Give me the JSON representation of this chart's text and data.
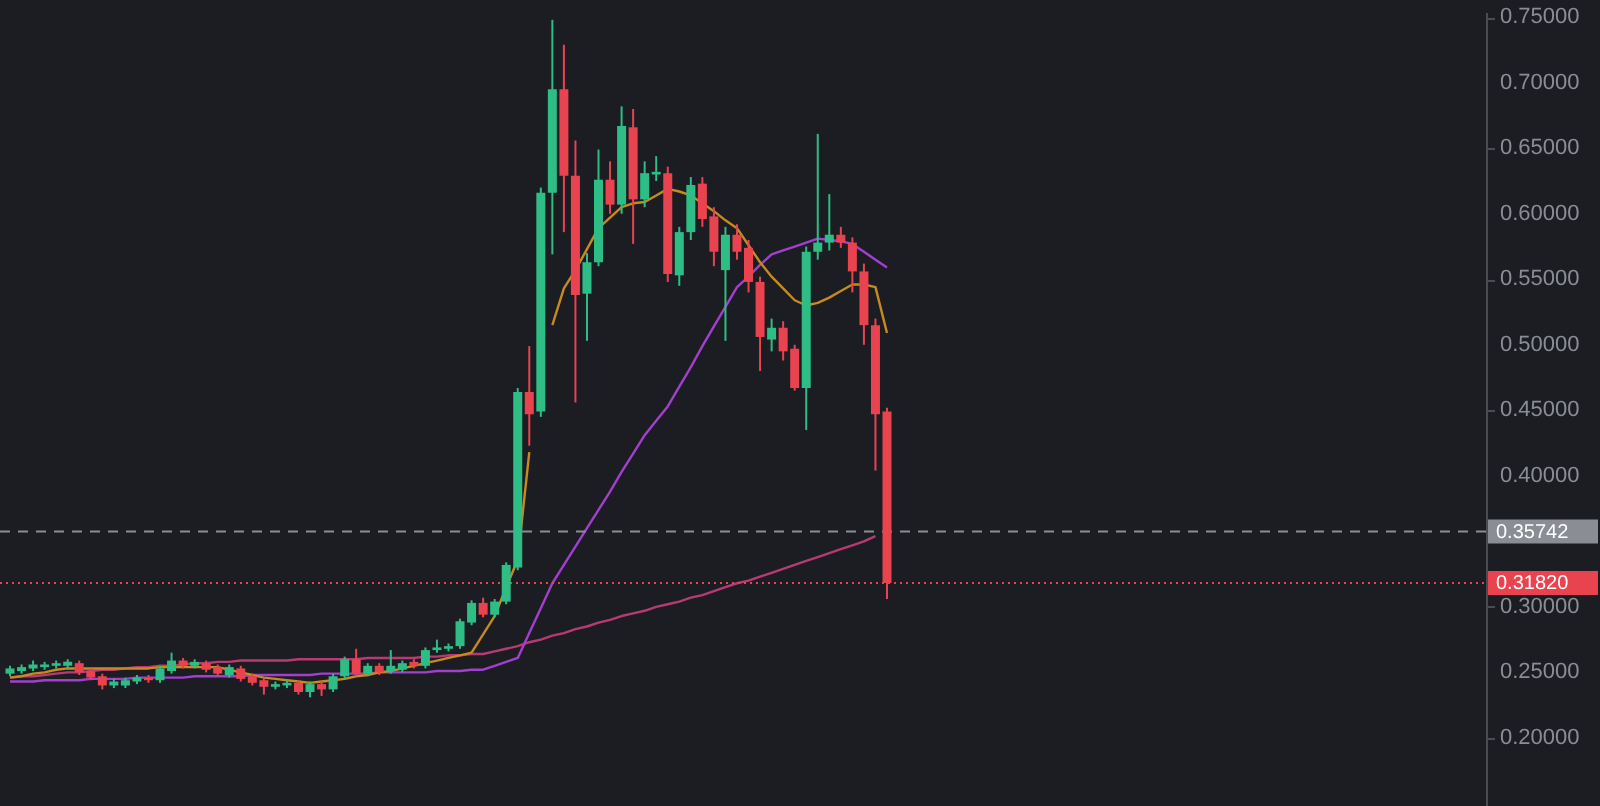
{
  "chart_data": {
    "type": "candlestick",
    "categories": [
      null,
      null,
      null,
      null,
      null,
      null,
      null,
      null,
      null,
      null,
      null,
      null,
      null,
      null,
      null,
      null,
      null,
      null,
      null,
      null,
      null,
      null,
      null,
      null,
      null,
      null,
      null,
      null,
      null,
      null,
      null,
      null,
      null,
      null,
      null,
      null,
      null,
      null,
      null,
      null,
      null,
      null,
      null,
      null,
      null,
      null,
      null,
      null,
      null,
      null,
      null,
      null,
      null,
      null,
      null,
      null,
      null,
      null,
      null,
      null,
      null,
      null,
      null,
      null,
      null,
      null,
      null,
      null,
      null,
      null,
      null,
      null,
      null,
      null,
      null,
      null,
      null
    ],
    "ohlc": [
      [
        0.249,
        0.255,
        0.247,
        0.253
      ],
      [
        0.251,
        0.256,
        0.249,
        0.254
      ],
      [
        0.253,
        0.259,
        0.251,
        0.256
      ],
      [
        0.254,
        0.258,
        0.252,
        0.256
      ],
      [
        0.255,
        0.259,
        0.253,
        0.257
      ],
      [
        0.255,
        0.26,
        0.253,
        0.258
      ],
      [
        0.257,
        0.259,
        0.248,
        0.25
      ],
      [
        0.251,
        0.253,
        0.244,
        0.246
      ],
      [
        0.247,
        0.249,
        0.237,
        0.24
      ],
      [
        0.24,
        0.245,
        0.238,
        0.243
      ],
      [
        0.24,
        0.246,
        0.238,
        0.244
      ],
      [
        0.243,
        0.248,
        0.241,
        0.246
      ],
      [
        0.246,
        0.248,
        0.242,
        0.244
      ],
      [
        0.244,
        0.255,
        0.242,
        0.253
      ],
      [
        0.251,
        0.265,
        0.249,
        0.259
      ],
      [
        0.259,
        0.261,
        0.253,
        0.255
      ],
      [
        0.255,
        0.26,
        0.253,
        0.258
      ],
      [
        0.257,
        0.259,
        0.25,
        0.252
      ],
      [
        0.254,
        0.256,
        0.247,
        0.249
      ],
      [
        0.248,
        0.256,
        0.246,
        0.254
      ],
      [
        0.253,
        0.255,
        0.243,
        0.245
      ],
      [
        0.247,
        0.249,
        0.24,
        0.242
      ],
      [
        0.244,
        0.246,
        0.233,
        0.239
      ],
      [
        0.239,
        0.243,
        0.237,
        0.241
      ],
      [
        0.24,
        0.244,
        0.238,
        0.242
      ],
      [
        0.242,
        0.244,
        0.233,
        0.235
      ],
      [
        0.235,
        0.243,
        0.231,
        0.241
      ],
      [
        0.241,
        0.243,
        0.232,
        0.237
      ],
      [
        0.237,
        0.249,
        0.235,
        0.247
      ],
      [
        0.247,
        0.262,
        0.245,
        0.26
      ],
      [
        0.26,
        0.268,
        0.247,
        0.249
      ],
      [
        0.249,
        0.257,
        0.247,
        0.255
      ],
      [
        0.255,
        0.257,
        0.248,
        0.25
      ],
      [
        0.251,
        0.267,
        0.249,
        0.255
      ],
      [
        0.252,
        0.259,
        0.25,
        0.257
      ],
      [
        0.258,
        0.26,
        0.253,
        0.255
      ],
      [
        0.255,
        0.269,
        0.253,
        0.267
      ],
      [
        0.267,
        0.275,
        0.265,
        0.269
      ],
      [
        0.268,
        0.272,
        0.266,
        0.27
      ],
      [
        0.27,
        0.291,
        0.268,
        0.289
      ],
      [
        0.288,
        0.305,
        0.286,
        0.303
      ],
      [
        0.303,
        0.307,
        0.292,
        0.294
      ],
      [
        0.294,
        0.306,
        0.292,
        0.304
      ],
      [
        0.304,
        0.334,
        0.302,
        0.332
      ],
      [
        0.33,
        0.467,
        0.328,
        0.464
      ],
      [
        0.464,
        0.499,
        0.423,
        0.447
      ],
      [
        0.449,
        0.62,
        0.445,
        0.616
      ],
      [
        0.616,
        0.748,
        0.569,
        0.695
      ],
      [
        0.695,
        0.729,
        0.586,
        0.629
      ],
      [
        0.629,
        0.656,
        0.456,
        0.538
      ],
      [
        0.539,
        0.57,
        0.503,
        0.563
      ],
      [
        0.563,
        0.649,
        0.56,
        0.626
      ],
      [
        0.626,
        0.64,
        0.6,
        0.607
      ],
      [
        0.607,
        0.682,
        0.6,
        0.667
      ],
      [
        0.666,
        0.68,
        0.577,
        0.611
      ],
      [
        0.611,
        0.64,
        0.605,
        0.631
      ],
      [
        0.63,
        0.644,
        0.625,
        0.632
      ],
      [
        0.631,
        0.636,
        0.548,
        0.554
      ],
      [
        0.553,
        0.59,
        0.545,
        0.586
      ],
      [
        0.586,
        0.628,
        0.58,
        0.622
      ],
      [
        0.623,
        0.628,
        0.59,
        0.596
      ],
      [
        0.598,
        0.605,
        0.56,
        0.571
      ],
      [
        0.557,
        0.59,
        0.503,
        0.584
      ],
      [
        0.584,
        0.592,
        0.565,
        0.571
      ],
      [
        0.574,
        0.58,
        0.54,
        0.548
      ],
      [
        0.548,
        0.552,
        0.48,
        0.506
      ],
      [
        0.504,
        0.52,
        0.495,
        0.513
      ],
      [
        0.513,
        0.518,
        0.488,
        0.495
      ],
      [
        0.497,
        0.5,
        0.465,
        0.467
      ],
      [
        0.467,
        0.575,
        0.435,
        0.571
      ],
      [
        0.571,
        0.661,
        0.565,
        0.578
      ],
      [
        0.578,
        0.615,
        0.572,
        0.584
      ],
      [
        0.584,
        0.59,
        0.574,
        0.578
      ],
      [
        0.578,
        0.582,
        0.54,
        0.556
      ],
      [
        0.556,
        0.562,
        0.5,
        0.515
      ],
      [
        0.515,
        0.52,
        0.404,
        0.447
      ],
      [
        0.449,
        0.452,
        0.306,
        0.3182
      ]
    ],
    "colors": [
      "#2ebd85",
      "#2ebd85",
      "#2ebd85",
      "#2ebd85",
      "#2ebd85",
      "#2ebd85",
      "#e8434f",
      "#e8434f",
      "#e8434f",
      "#2ebd85",
      "#2ebd85",
      "#2ebd85",
      "#e8434f",
      "#2ebd85",
      "#2ebd85",
      "#e8434f",
      "#2ebd85",
      "#e8434f",
      "#e8434f",
      "#2ebd85",
      "#e8434f",
      "#e8434f",
      "#e8434f",
      "#2ebd85",
      "#2ebd85",
      "#e8434f",
      "#2ebd85",
      "#e8434f",
      "#2ebd85",
      "#2ebd85",
      "#e8434f",
      "#2ebd85",
      "#e8434f",
      "#2ebd85",
      "#2ebd85",
      "#e8434f",
      "#2ebd85",
      "#2ebd85",
      "#2ebd85",
      "#2ebd85",
      "#2ebd85",
      "#e8434f",
      "#2ebd85",
      "#2ebd85",
      "#2ebd85",
      "#e8434f",
      "#2ebd85",
      "#2ebd85",
      "#e8434f",
      "#e8434f",
      "#2ebd85",
      "#2ebd85",
      "#e8434f",
      "#2ebd85",
      "#e8434f",
      "#2ebd85",
      "#2ebd85",
      "#e8434f",
      "#2ebd85",
      "#2ebd85",
      "#e8434f",
      "#e8434f",
      "#2ebd85",
      "#e8434f",
      "#e8434f",
      "#e8434f",
      "#2ebd85",
      "#e8434f",
      "#e8434f",
      "#2ebd85",
      "#2ebd85",
      "#2ebd85",
      "#e8434f",
      "#e8434f",
      "#e8434f",
      "#e8434f",
      "#e8434f"
    ],
    "series": [
      {
        "type": "line",
        "color": "#b73a74",
        "values": [
          0.246,
          0.247,
          0.247,
          0.248,
          0.249,
          0.25,
          0.25,
          0.251,
          0.252,
          0.252,
          0.253,
          0.254,
          0.254,
          0.255,
          0.255,
          0.256,
          0.257,
          0.257,
          0.258,
          0.258,
          0.259,
          0.259,
          0.259,
          0.259,
          0.259,
          0.26,
          0.26,
          0.26,
          0.26,
          0.26,
          0.26,
          0.261,
          0.261,
          0.261,
          0.261,
          0.261,
          0.262,
          0.262,
          0.263,
          0.263,
          0.264,
          0.264,
          0.266,
          0.268,
          0.27,
          0.273,
          0.275,
          0.278,
          0.28,
          0.283,
          0.285,
          0.288,
          0.29,
          0.293,
          0.295,
          0.297,
          0.3,
          0.302,
          0.304,
          0.307,
          0.309,
          0.312,
          0.315,
          0.318,
          0.32,
          0.323,
          0.326,
          0.329,
          0.332,
          0.335,
          0.338,
          0.341,
          0.344,
          0.347,
          0.35,
          0.354,
          null
        ]
      },
      {
        "type": "line",
        "color": "#a33fd0",
        "values": [
          0.243,
          0.243,
          0.243,
          0.244,
          0.244,
          0.244,
          0.244,
          0.245,
          0.245,
          0.245,
          0.245,
          0.246,
          0.246,
          0.246,
          0.246,
          0.246,
          0.247,
          0.247,
          0.247,
          0.247,
          0.247,
          0.248,
          0.248,
          0.248,
          0.248,
          0.248,
          0.248,
          0.249,
          0.249,
          0.249,
          0.249,
          0.249,
          0.25,
          0.25,
          0.25,
          0.25,
          0.25,
          0.251,
          0.251,
          0.251,
          0.252,
          0.252,
          0.255,
          0.258,
          0.261,
          0.28,
          0.299,
          0.318,
          0.332,
          0.346,
          0.36,
          0.374,
          0.388,
          0.403,
          0.417,
          0.431,
          0.442,
          0.453,
          0.468,
          0.483,
          0.499,
          0.514,
          0.529,
          0.544,
          0.552,
          0.561,
          0.569,
          0.572,
          0.575,
          0.578,
          0.581,
          0.58,
          0.579,
          0.577,
          0.571,
          0.565,
          0.559
        ]
      },
      {
        "type": "line",
        "color": "#c68a1e",
        "values": [
          0.246,
          0.247,
          0.249,
          0.25,
          0.252,
          0.253,
          0.253,
          0.253,
          0.253,
          0.253,
          0.253,
          0.253,
          0.253,
          0.254,
          0.254,
          0.254,
          0.254,
          0.254,
          0.254,
          0.252,
          0.25,
          0.248,
          0.246,
          0.245,
          0.244,
          0.243,
          0.242,
          0.243,
          0.244,
          0.245,
          0.247,
          0.248,
          0.25,
          0.251,
          0.253,
          0.255,
          0.257,
          0.259,
          0.261,
          0.263,
          0.265,
          0.279,
          0.293,
          0.315,
          0.336,
          0.418,
          null,
          0.515,
          0.543,
          0.557,
          0.573,
          0.589,
          0.597,
          0.605,
          0.608,
          0.609,
          0.614,
          0.619,
          0.617,
          0.614,
          0.608,
          0.602,
          0.595,
          0.589,
          0.576,
          0.563,
          0.552,
          0.543,
          0.534,
          0.53,
          0.532,
          0.536,
          0.541,
          0.546,
          0.546,
          0.544,
          0.509
        ]
      }
    ],
    "ylim": [
      0.148,
      0.754
    ],
    "yticks": [
      {
        "value": 0.2,
        "label": "0.20000"
      },
      {
        "value": 0.25,
        "label": "0.25000"
      },
      {
        "value": 0.3,
        "label": "0.30000"
      },
      {
        "value": 0.4,
        "label": "0.40000"
      },
      {
        "value": 0.45,
        "label": "0.45000"
      },
      {
        "value": 0.5,
        "label": "0.50000"
      },
      {
        "value": 0.55,
        "label": "0.55000"
      },
      {
        "value": 0.6,
        "label": "0.60000"
      },
      {
        "value": 0.65,
        "label": "0.65000"
      },
      {
        "value": 0.7,
        "label": "0.70000"
      },
      {
        "value": 0.75,
        "label": "0.75000"
      }
    ],
    "ref_lines": [
      {
        "axis": "y",
        "value": 0.35742,
        "label": "0.35742",
        "color": "#8a8d94",
        "line_style": "dashed"
      },
      {
        "axis": "y",
        "value": 0.3182,
        "label": "0.31820",
        "color": "#e8434f",
        "line_style": "dotted"
      }
    ],
    "tick_labels": "y",
    "grid": false
  }
}
